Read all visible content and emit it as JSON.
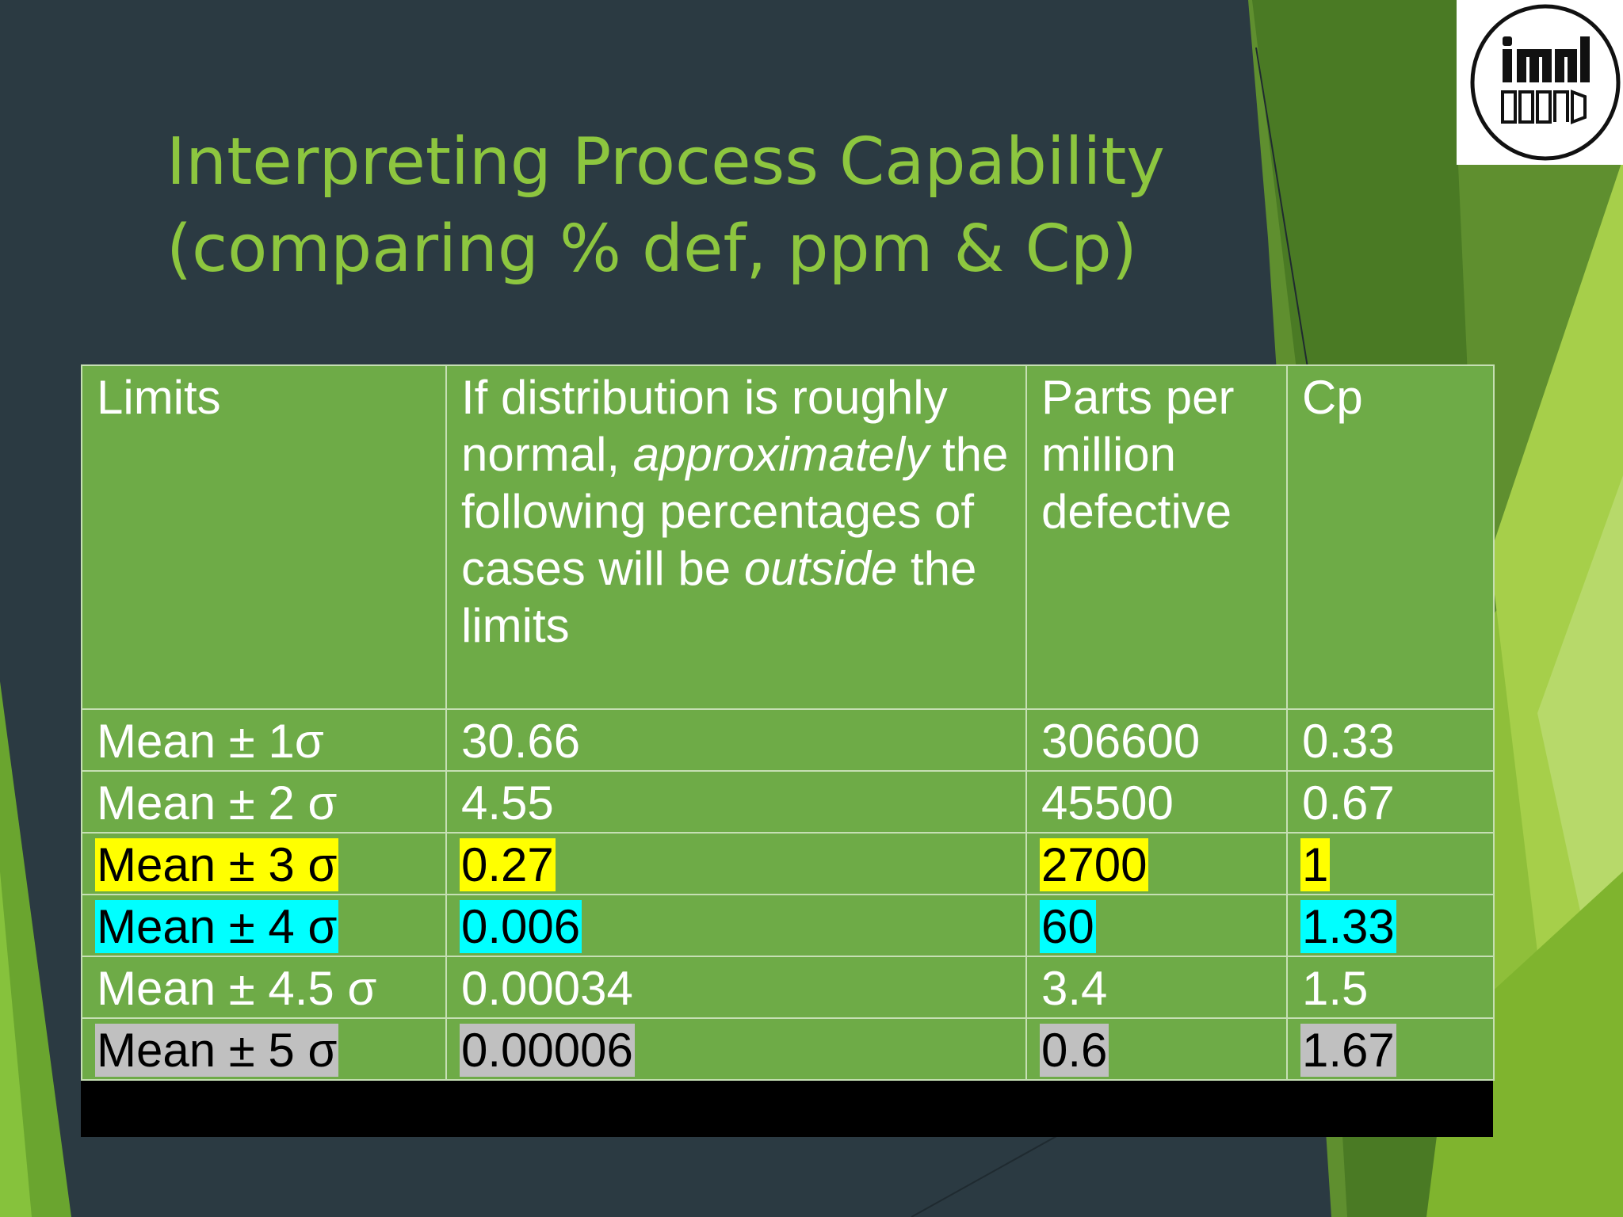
{
  "slide": {
    "title_line1": "Interpreting Process Capability",
    "title_line2": "(comparing % def, ppm & Cp)"
  },
  "logo": {
    "icon": "iim-logo",
    "text": "iim1"
  },
  "colors": {
    "background": "#2b3a42",
    "title": "#8dc63f",
    "table_fill": "#6eab47",
    "highlight_yellow": "#ffff00",
    "highlight_cyan": "#00ffff",
    "highlight_gray": "#c0c0c0"
  },
  "table": {
    "headers": {
      "limits": "Limits",
      "percent_pre": "If distribution is roughly normal,",
      "percent_em1": "approximately",
      "percent_mid": "the following percentages of cases will be",
      "percent_em2": "outside",
      "percent_post": "the limits",
      "ppm": "Parts per million defective",
      "cp": "Cp"
    },
    "rows": [
      {
        "limits": "Mean ± 1σ",
        "percent": "30.66",
        "ppm": "306600",
        "cp": "0.33",
        "highlight": "none"
      },
      {
        "limits": "Mean ± 2 σ",
        "percent": "4.55",
        "ppm": "45500",
        "cp": "0.67",
        "highlight": "none"
      },
      {
        "limits": "Mean ± 3 σ",
        "percent": "0.27",
        "ppm": "2700",
        "cp": "1",
        "highlight": "yellow"
      },
      {
        "limits": "Mean ± 4 σ",
        "percent": "0.006",
        "ppm": "60",
        "cp": "1.33",
        "highlight": "cyan"
      },
      {
        "limits": "Mean ± 4.5 σ",
        "percent": "0.00034",
        "ppm": "3.4",
        "cp": "1.5",
        "highlight": "none"
      },
      {
        "limits": "Mean ± 5 σ",
        "percent": "0.00006",
        "ppm": "0.6",
        "cp": "1.67",
        "highlight": "gray"
      }
    ]
  }
}
